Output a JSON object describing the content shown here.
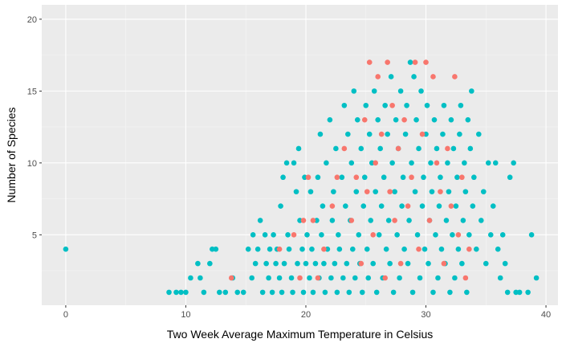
{
  "chart_data": {
    "type": "scatter",
    "title": "",
    "xlabel": "Two Week Average Maximum Temperature in Celsius",
    "ylabel": "Number of Species",
    "xlim": [
      -2,
      41
    ],
    "ylim": [
      0.1,
      21
    ],
    "x_ticks": [
      0,
      10,
      20,
      30,
      40
    ],
    "x_tick_labels": [
      "0",
      "10",
      "20",
      "30",
      "40"
    ],
    "y_ticks": [
      5,
      10,
      15,
      20
    ],
    "y_tick_labels": [
      "5",
      "10",
      "15",
      "20"
    ],
    "grid": true,
    "legend": "none",
    "colors": {
      "panel_background": "#ebebeb",
      "grid_major": "#ffffff",
      "series_teal": "#00bfc4",
      "series_salmon": "#f8766d"
    },
    "series": [
      {
        "color": "#00bfc4",
        "points": [
          [
            0.0,
            4
          ],
          [
            8.6,
            1
          ],
          [
            9.2,
            1
          ],
          [
            9.6,
            1
          ],
          [
            10.0,
            1
          ],
          [
            10.4,
            2
          ],
          [
            11.0,
            3
          ],
          [
            11.2,
            2
          ],
          [
            11.5,
            1
          ],
          [
            12.0,
            3
          ],
          [
            12.2,
            4
          ],
          [
            12.5,
            4
          ],
          [
            12.8,
            1
          ],
          [
            13.3,
            1
          ],
          [
            13.9,
            2
          ],
          [
            14.3,
            1
          ],
          [
            14.8,
            1
          ],
          [
            15.2,
            4
          ],
          [
            15.5,
            2
          ],
          [
            15.6,
            5
          ],
          [
            15.8,
            3
          ],
          [
            16.0,
            4
          ],
          [
            16.2,
            6
          ],
          [
            16.4,
            1
          ],
          [
            16.6,
            5
          ],
          [
            16.7,
            3
          ],
          [
            16.9,
            2
          ],
          [
            17.0,
            4
          ],
          [
            17.2,
            1
          ],
          [
            17.3,
            5
          ],
          [
            17.5,
            3
          ],
          [
            17.6,
            4
          ],
          [
            17.8,
            2
          ],
          [
            17.9,
            7
          ],
          [
            18.0,
            1
          ],
          [
            18.1,
            9
          ],
          [
            18.2,
            3
          ],
          [
            18.4,
            10
          ],
          [
            18.5,
            5
          ],
          [
            18.6,
            4
          ],
          [
            18.8,
            2
          ],
          [
            18.9,
            1
          ],
          [
            19.0,
            10
          ],
          [
            19.2,
            8
          ],
          [
            19.3,
            3
          ],
          [
            19.4,
            11
          ],
          [
            19.5,
            6
          ],
          [
            19.7,
            4
          ],
          [
            19.8,
            1
          ],
          [
            19.9,
            9
          ],
          [
            20.0,
            3
          ],
          [
            20.1,
            5
          ],
          [
            20.3,
            2
          ],
          [
            20.4,
            8
          ],
          [
            20.5,
            4
          ],
          [
            20.6,
            1
          ],
          [
            20.8,
            3
          ],
          [
            20.9,
            6
          ],
          [
            21.0,
            9
          ],
          [
            21.1,
            2
          ],
          [
            21.2,
            12
          ],
          [
            21.3,
            5
          ],
          [
            21.4,
            7
          ],
          [
            21.5,
            3
          ],
          [
            21.6,
            1
          ],
          [
            21.7,
            10
          ],
          [
            21.8,
            4
          ],
          [
            22.0,
            13
          ],
          [
            22.1,
            2
          ],
          [
            22.2,
            6
          ],
          [
            22.3,
            8
          ],
          [
            22.4,
            3
          ],
          [
            22.5,
            11
          ],
          [
            22.6,
            1
          ],
          [
            22.7,
            5
          ],
          [
            22.8,
            4
          ],
          [
            23.0,
            9
          ],
          [
            23.1,
            2
          ],
          [
            23.2,
            14
          ],
          [
            23.3,
            7
          ],
          [
            23.4,
            3
          ],
          [
            23.5,
            12
          ],
          [
            23.6,
            1
          ],
          [
            23.7,
            6
          ],
          [
            23.8,
            10
          ],
          [
            23.9,
            4
          ],
          [
            24.0,
            15
          ],
          [
            24.1,
            2
          ],
          [
            24.2,
            8
          ],
          [
            24.3,
            13
          ],
          [
            24.4,
            5
          ],
          [
            24.5,
            3
          ],
          [
            24.6,
            11
          ],
          [
            24.7,
            1
          ],
          [
            24.8,
            7
          ],
          [
            24.9,
            9
          ],
          [
            25.0,
            14
          ],
          [
            25.1,
            4
          ],
          [
            25.2,
            2
          ],
          [
            25.3,
            12
          ],
          [
            25.4,
            6
          ],
          [
            25.5,
            10
          ],
          [
            25.6,
            3
          ],
          [
            25.7,
            15
          ],
          [
            25.8,
            8
          ],
          [
            25.9,
            1
          ],
          [
            26.0,
            13
          ],
          [
            26.1,
            5
          ],
          [
            26.2,
            11
          ],
          [
            26.3,
            7
          ],
          [
            26.4,
            2
          ],
          [
            26.5,
            9
          ],
          [
            26.6,
            14
          ],
          [
            26.7,
            4
          ],
          [
            26.8,
            12
          ],
          [
            26.9,
            6
          ],
          [
            27.0,
            3
          ],
          [
            27.1,
            16
          ],
          [
            27.2,
            10
          ],
          [
            27.3,
            1
          ],
          [
            27.4,
            8
          ],
          [
            27.5,
            13
          ],
          [
            27.6,
            5
          ],
          [
            27.7,
            11
          ],
          [
            27.8,
            2
          ],
          [
            27.9,
            15
          ],
          [
            28.0,
            7
          ],
          [
            28.1,
            9
          ],
          [
            28.2,
            4
          ],
          [
            28.3,
            12
          ],
          [
            28.4,
            14
          ],
          [
            28.5,
            3
          ],
          [
            28.6,
            6
          ],
          [
            28.7,
            17
          ],
          [
            28.8,
            10
          ],
          [
            28.9,
            1
          ],
          [
            29.0,
            16
          ],
          [
            29.1,
            8
          ],
          [
            29.2,
            13
          ],
          [
            29.3,
            5
          ],
          [
            29.4,
            11
          ],
          [
            29.5,
            2
          ],
          [
            29.6,
            15
          ],
          [
            29.7,
            7
          ],
          [
            29.8,
            9
          ],
          [
            29.9,
            4
          ],
          [
            30.0,
            12
          ],
          [
            30.1,
            14
          ],
          [
            30.2,
            3
          ],
          [
            30.3,
            6
          ],
          [
            30.4,
            10
          ],
          [
            30.5,
            8
          ],
          [
            30.6,
            1
          ],
          [
            30.7,
            13
          ],
          [
            30.8,
            5
          ],
          [
            30.9,
            11
          ],
          [
            31.0,
            2
          ],
          [
            31.1,
            7
          ],
          [
            31.2,
            9
          ],
          [
            31.3,
            4
          ],
          [
            31.4,
            12
          ],
          [
            31.5,
            14
          ],
          [
            31.6,
            3
          ],
          [
            31.7,
            6
          ],
          [
            31.8,
            10
          ],
          [
            31.9,
            8
          ],
          [
            32.0,
            1
          ],
          [
            32.1,
            13
          ],
          [
            32.2,
            5
          ],
          [
            32.3,
            11
          ],
          [
            32.4,
            2
          ],
          [
            32.5,
            7
          ],
          [
            32.6,
            9
          ],
          [
            32.7,
            4
          ],
          [
            32.8,
            12
          ],
          [
            32.9,
            14
          ],
          [
            33.0,
            3
          ],
          [
            33.1,
            6
          ],
          [
            33.2,
            10
          ],
          [
            33.3,
            8
          ],
          [
            33.4,
            1
          ],
          [
            33.5,
            13
          ],
          [
            33.6,
            5
          ],
          [
            33.7,
            11
          ],
          [
            33.8,
            15
          ],
          [
            33.9,
            7
          ],
          [
            34.0,
            9
          ],
          [
            34.2,
            4
          ],
          [
            34.4,
            12
          ],
          [
            34.6,
            6
          ],
          [
            34.8,
            8
          ],
          [
            35.0,
            3
          ],
          [
            35.2,
            10
          ],
          [
            35.4,
            5
          ],
          [
            35.6,
            7
          ],
          [
            35.8,
            10
          ],
          [
            36.0,
            4
          ],
          [
            36.2,
            2
          ],
          [
            36.4,
            5
          ],
          [
            36.6,
            3
          ],
          [
            36.8,
            1
          ],
          [
            37.0,
            9
          ],
          [
            37.3,
            10
          ],
          [
            37.5,
            1
          ],
          [
            37.8,
            1
          ],
          [
            38.5,
            1
          ],
          [
            38.8,
            5
          ],
          [
            39.2,
            2
          ]
        ]
      },
      {
        "color": "#f8766d",
        "points": [
          [
            13.8,
            2
          ],
          [
            17.8,
            4
          ],
          [
            19.0,
            5
          ],
          [
            19.5,
            2
          ],
          [
            19.8,
            6
          ],
          [
            20.2,
            9
          ],
          [
            20.6,
            6
          ],
          [
            21.0,
            2
          ],
          [
            21.5,
            4
          ],
          [
            22.2,
            7
          ],
          [
            22.6,
            9
          ],
          [
            23.2,
            11
          ],
          [
            23.8,
            6
          ],
          [
            24.2,
            9
          ],
          [
            24.6,
            3
          ],
          [
            24.9,
            13
          ],
          [
            25.1,
            8
          ],
          [
            25.3,
            17
          ],
          [
            25.6,
            5
          ],
          [
            25.8,
            10
          ],
          [
            26.0,
            16
          ],
          [
            26.3,
            12
          ],
          [
            26.6,
            2
          ],
          [
            26.8,
            17
          ],
          [
            27.0,
            8
          ],
          [
            27.2,
            14
          ],
          [
            27.4,
            6
          ],
          [
            27.7,
            11
          ],
          [
            27.9,
            3
          ],
          [
            28.2,
            13
          ],
          [
            28.5,
            7
          ],
          [
            28.8,
            9
          ],
          [
            29.1,
            17
          ],
          [
            29.4,
            4
          ],
          [
            29.7,
            12
          ],
          [
            30.0,
            17
          ],
          [
            30.3,
            6
          ],
          [
            30.6,
            16
          ],
          [
            30.9,
            10
          ],
          [
            31.2,
            8
          ],
          [
            31.5,
            3
          ],
          [
            31.8,
            11
          ],
          [
            32.1,
            7
          ],
          [
            32.4,
            16
          ],
          [
            32.7,
            5
          ],
          [
            33.0,
            9
          ],
          [
            33.3,
            2
          ],
          [
            33.6,
            4
          ]
        ]
      }
    ]
  }
}
